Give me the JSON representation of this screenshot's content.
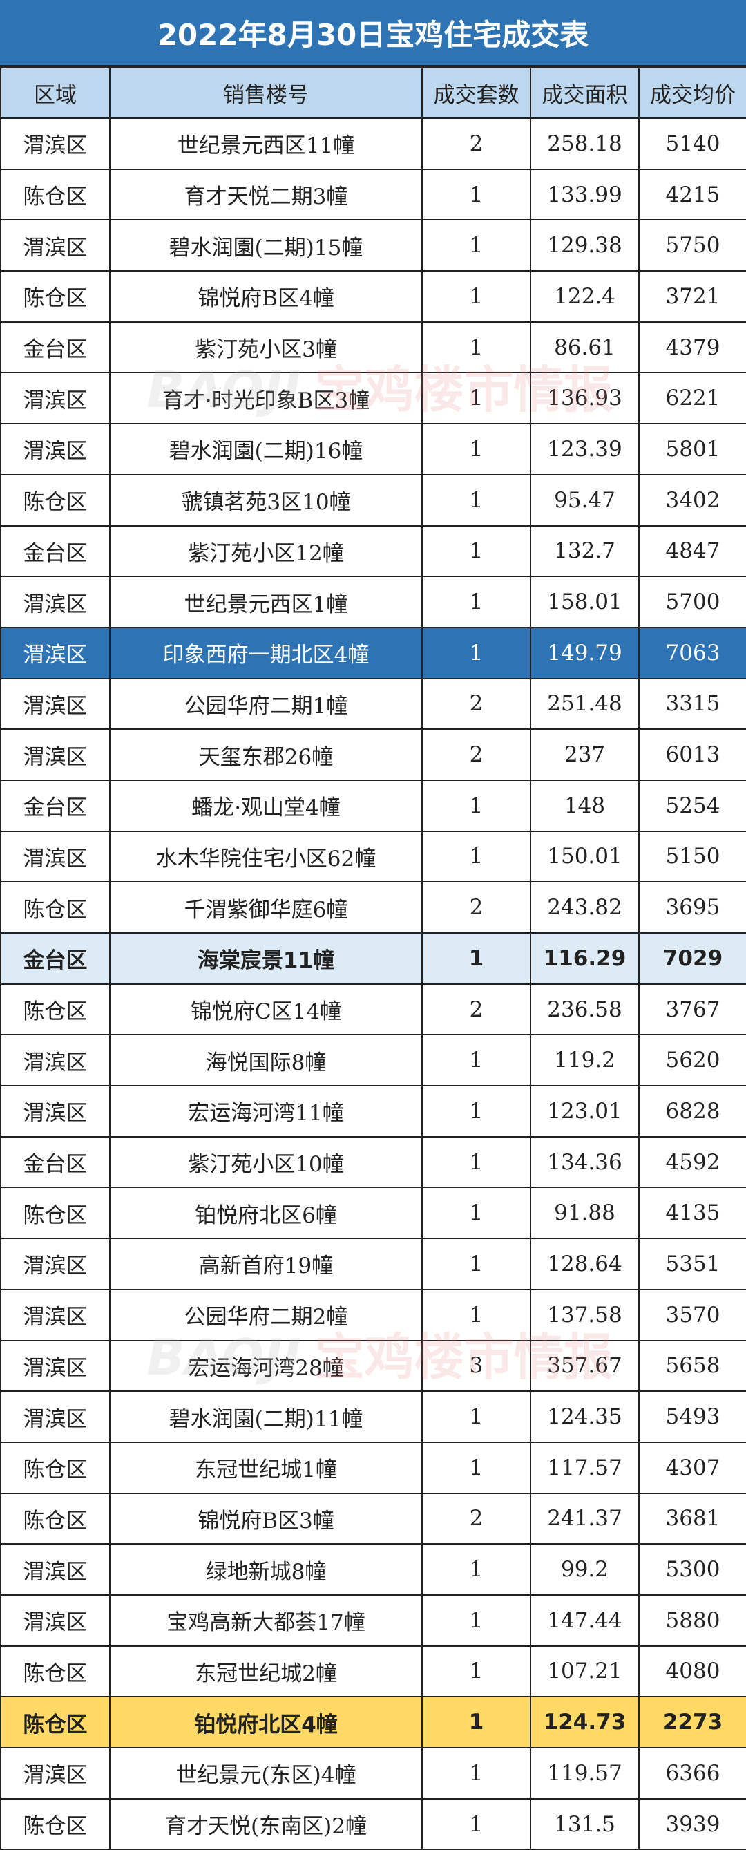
{
  "title": "2022年8月30日宝鸡住宅成交表",
  "watermark": {
    "en": "BAOJI",
    "cn": "宝鸡楼市情报"
  },
  "colors": {
    "title_bg": "#2e74b5",
    "header_bg": "#bdd7ee",
    "highlight_dark": "#2e74b5",
    "highlight_light": "#ddebf7",
    "highlight_yellow": "#ffd966"
  },
  "columns": [
    "区域",
    "销售楼号",
    "成交套数",
    "成交面积",
    "成交均价"
  ],
  "rows": [
    {
      "cells": [
        "渭滨区",
        "世纪景元西区11幢",
        "2",
        "258.18",
        "5140"
      ]
    },
    {
      "cells": [
        "陈仓区",
        "育才天悦二期3幢",
        "1",
        "133.99",
        "4215"
      ]
    },
    {
      "cells": [
        "渭滨区",
        "碧水润園(二期)15幢",
        "1",
        "129.38",
        "5750"
      ]
    },
    {
      "cells": [
        "陈仓区",
        "锦悦府B区4幢",
        "1",
        "122.4",
        "3721"
      ]
    },
    {
      "cells": [
        "金台区",
        "紫汀苑小区3幢",
        "1",
        "86.61",
        "4379"
      ]
    },
    {
      "cells": [
        "渭滨区",
        "育才·时光印象B区3幢",
        "1",
        "136.93",
        "6221"
      ]
    },
    {
      "cells": [
        "渭滨区",
        "碧水润園(二期)16幢",
        "1",
        "123.39",
        "5801"
      ]
    },
    {
      "cells": [
        "陈仓区",
        "虢镇茗苑3区10幢",
        "1",
        "95.47",
        "3402"
      ]
    },
    {
      "cells": [
        "金台区",
        "紫汀苑小区12幢",
        "1",
        "132.7",
        "4847"
      ]
    },
    {
      "cells": [
        "渭滨区",
        "世纪景元西区1幢",
        "1",
        "158.01",
        "5700"
      ]
    },
    {
      "cells": [
        "渭滨区",
        "印象西府一期北区4幢",
        "1",
        "149.79",
        "7063"
      ],
      "highlight": "dark"
    },
    {
      "cells": [
        "渭滨区",
        "公园华府二期1幢",
        "2",
        "251.48",
        "3315"
      ]
    },
    {
      "cells": [
        "渭滨区",
        "天玺东郡26幢",
        "2",
        "237",
        "6013"
      ]
    },
    {
      "cells": [
        "金台区",
        "蟠龙·观山堂4幢",
        "1",
        "148",
        "5254"
      ]
    },
    {
      "cells": [
        "渭滨区",
        "水木华院住宅小区62幢",
        "1",
        "150.01",
        "5150"
      ]
    },
    {
      "cells": [
        "陈仓区",
        "千渭紫御华庭6幢",
        "2",
        "243.82",
        "3695"
      ]
    },
    {
      "cells": [
        "金台区",
        "海棠宸景11幢",
        "1",
        "116.29",
        "7029"
      ],
      "highlight": "light"
    },
    {
      "cells": [
        "陈仓区",
        "锦悦府C区14幢",
        "2",
        "236.58",
        "3767"
      ]
    },
    {
      "cells": [
        "渭滨区",
        "海悦国际8幢",
        "1",
        "119.2",
        "5620"
      ]
    },
    {
      "cells": [
        "渭滨区",
        "宏运海河湾11幢",
        "1",
        "123.01",
        "6828"
      ]
    },
    {
      "cells": [
        "金台区",
        "紫汀苑小区10幢",
        "1",
        "134.36",
        "4592"
      ]
    },
    {
      "cells": [
        "陈仓区",
        "铂悦府北区6幢",
        "1",
        "91.88",
        "4135"
      ]
    },
    {
      "cells": [
        "渭滨区",
        "高新首府19幢",
        "1",
        "128.64",
        "5351"
      ]
    },
    {
      "cells": [
        "渭滨区",
        "公园华府二期2幢",
        "1",
        "137.58",
        "3570"
      ]
    },
    {
      "cells": [
        "渭滨区",
        "宏运海河湾28幢",
        "3",
        "357.67",
        "5658"
      ]
    },
    {
      "cells": [
        "渭滨区",
        "碧水润園(二期)11幢",
        "1",
        "124.35",
        "5493"
      ]
    },
    {
      "cells": [
        "陈仓区",
        "东冠世纪城1幢",
        "1",
        "117.57",
        "4307"
      ]
    },
    {
      "cells": [
        "陈仓区",
        "锦悦府B区3幢",
        "2",
        "241.37",
        "3681"
      ]
    },
    {
      "cells": [
        "渭滨区",
        "绿地新城8幢",
        "1",
        "99.2",
        "5300"
      ]
    },
    {
      "cells": [
        "渭滨区",
        "宝鸡高新大都荟17幢",
        "1",
        "147.44",
        "5880"
      ]
    },
    {
      "cells": [
        "陈仓区",
        "东冠世纪城2幢",
        "1",
        "107.21",
        "4080"
      ]
    },
    {
      "cells": [
        "陈仓区",
        "铂悦府北区4幢",
        "1",
        "124.73",
        "2273"
      ],
      "highlight": "yellow"
    },
    {
      "cells": [
        "渭滨区",
        "世纪景元(东区)4幢",
        "1",
        "119.57",
        "6366"
      ]
    },
    {
      "cells": [
        "陈仓区",
        "育才天悦(东南区)2幢",
        "1",
        "131.5",
        "3939"
      ]
    }
  ]
}
